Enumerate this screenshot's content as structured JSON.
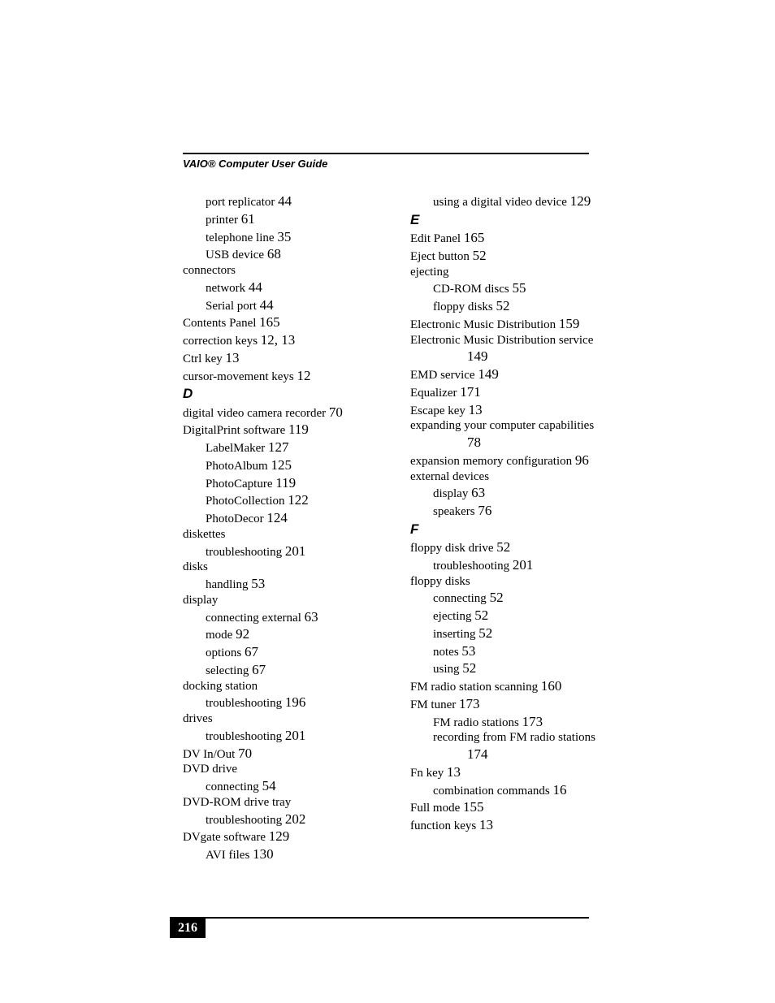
{
  "header": "VAIO® Computer User Guide",
  "page_number": "216",
  "colors": {
    "text": "#000000",
    "background": "#ffffff",
    "pagenum_bg": "#000000",
    "pagenum_fg": "#ffffff"
  },
  "fonts": {
    "body_family": "Times New Roman",
    "header_family": "Arial",
    "body_size_pt": 11,
    "page_ref_size_pt": 13,
    "header_size_pt": 10,
    "letter_size_pt": 13
  },
  "left_column": [
    {
      "type": "sub1",
      "text": "port replicator ",
      "page": "44"
    },
    {
      "type": "sub1",
      "text": "printer ",
      "page": "61"
    },
    {
      "type": "sub1",
      "text": "telephone line ",
      "page": "35"
    },
    {
      "type": "sub1",
      "text": "USB device ",
      "page": "68"
    },
    {
      "type": "entry",
      "text": "connectors",
      "page": ""
    },
    {
      "type": "sub1",
      "text": "network ",
      "page": "44"
    },
    {
      "type": "sub1",
      "text": "Serial port ",
      "page": "44"
    },
    {
      "type": "entry",
      "text": "Contents Panel ",
      "page": "165"
    },
    {
      "type": "entry",
      "text": "correction keys ",
      "page": "12, 13"
    },
    {
      "type": "entry",
      "text": "Ctrl key ",
      "page": "13"
    },
    {
      "type": "entry",
      "text": "cursor-movement keys ",
      "page": "12"
    },
    {
      "type": "letter",
      "text": "D",
      "page": ""
    },
    {
      "type": "entry",
      "text": "digital video camera recorder ",
      "page": "70"
    },
    {
      "type": "entry",
      "text": "DigitalPrint software ",
      "page": "119"
    },
    {
      "type": "sub1",
      "text": "LabelMaker ",
      "page": "127"
    },
    {
      "type": "sub1",
      "text": "PhotoAlbum ",
      "page": "125"
    },
    {
      "type": "sub1",
      "text": "PhotoCapture ",
      "page": "119"
    },
    {
      "type": "sub1",
      "text": "PhotoCollection ",
      "page": "122"
    },
    {
      "type": "sub1",
      "text": "PhotoDecor ",
      "page": "124"
    },
    {
      "type": "entry",
      "text": "diskettes",
      "page": ""
    },
    {
      "type": "sub1",
      "text": "troubleshooting ",
      "page": "201"
    },
    {
      "type": "entry",
      "text": "disks",
      "page": ""
    },
    {
      "type": "sub1",
      "text": "handling ",
      "page": "53"
    },
    {
      "type": "entry",
      "text": "display",
      "page": ""
    },
    {
      "type": "sub1",
      "text": "connecting external ",
      "page": "63"
    },
    {
      "type": "sub1",
      "text": "mode ",
      "page": "92"
    },
    {
      "type": "sub1",
      "text": "options ",
      "page": "67"
    },
    {
      "type": "sub1",
      "text": "selecting ",
      "page": "67"
    },
    {
      "type": "entry",
      "text": "docking station",
      "page": ""
    },
    {
      "type": "sub1",
      "text": "troubleshooting ",
      "page": "196"
    },
    {
      "type": "entry",
      "text": "drives",
      "page": ""
    },
    {
      "type": "sub1",
      "text": "troubleshooting ",
      "page": "201"
    },
    {
      "type": "entry",
      "text": "DV In/Out ",
      "page": "70"
    },
    {
      "type": "entry",
      "text": "DVD drive",
      "page": ""
    },
    {
      "type": "sub1",
      "text": "connecting ",
      "page": "54"
    },
    {
      "type": "entry",
      "text": "DVD-ROM drive tray",
      "page": ""
    },
    {
      "type": "sub1",
      "text": "troubleshooting ",
      "page": "202"
    },
    {
      "type": "entry",
      "text": "DVgate software ",
      "page": "129"
    },
    {
      "type": "sub1",
      "text": "AVI files ",
      "page": "130"
    }
  ],
  "right_column": [
    {
      "type": "sub1",
      "text": "using a digital video device ",
      "page": "129"
    },
    {
      "type": "letter",
      "text": "E",
      "page": ""
    },
    {
      "type": "entry",
      "text": "Edit Panel ",
      "page": "165"
    },
    {
      "type": "entry",
      "text": "Eject button ",
      "page": "52"
    },
    {
      "type": "entry",
      "text": "ejecting",
      "page": ""
    },
    {
      "type": "sub1",
      "text": "CD-ROM discs ",
      "page": "55"
    },
    {
      "type": "sub1",
      "text": "floppy disks ",
      "page": "52"
    },
    {
      "type": "entry",
      "text": "Electronic Music Distribution ",
      "page": "159"
    },
    {
      "type": "entry",
      "text": "Electronic Music Distribution service ",
      "page": ""
    },
    {
      "type": "sub2",
      "text": "",
      "page": "149"
    },
    {
      "type": "entry",
      "text": "EMD service ",
      "page": "149"
    },
    {
      "type": "entry",
      "text": "Equalizer ",
      "page": "171"
    },
    {
      "type": "entry",
      "text": "Escape key ",
      "page": "13"
    },
    {
      "type": "entry",
      "text": "expanding your computer capabilities ",
      "page": ""
    },
    {
      "type": "sub2",
      "text": "",
      "page": "78"
    },
    {
      "type": "entry",
      "text": "expansion memory configuration ",
      "page": "96"
    },
    {
      "type": "entry",
      "text": "external devices",
      "page": ""
    },
    {
      "type": "sub1",
      "text": "display ",
      "page": "63"
    },
    {
      "type": "sub1",
      "text": "speakers ",
      "page": "76"
    },
    {
      "type": "letter",
      "text": "F",
      "page": ""
    },
    {
      "type": "entry",
      "text": "floppy disk drive ",
      "page": "52"
    },
    {
      "type": "sub1",
      "text": "troubleshooting ",
      "page": "201"
    },
    {
      "type": "entry",
      "text": "floppy disks",
      "page": ""
    },
    {
      "type": "sub1",
      "text": "connecting ",
      "page": "52"
    },
    {
      "type": "sub1",
      "text": "ejecting ",
      "page": "52"
    },
    {
      "type": "sub1",
      "text": "inserting ",
      "page": "52"
    },
    {
      "type": "sub1",
      "text": "notes ",
      "page": "53"
    },
    {
      "type": "sub1",
      "text": "using ",
      "page": "52"
    },
    {
      "type": "entry",
      "text": "FM radio station scanning ",
      "page": "160"
    },
    {
      "type": "entry",
      "text": "FM tuner ",
      "page": "173"
    },
    {
      "type": "sub1",
      "text": "FM radio stations ",
      "page": "173"
    },
    {
      "type": "sub1",
      "text": "recording from FM radio stations ",
      "page": ""
    },
    {
      "type": "sub2",
      "text": "",
      "page": "174"
    },
    {
      "type": "entry",
      "text": "Fn key ",
      "page": "13"
    },
    {
      "type": "sub1",
      "text": "combination commands ",
      "page": "16"
    },
    {
      "type": "entry",
      "text": "Full mode ",
      "page": "155"
    },
    {
      "type": "entry",
      "text": "function keys ",
      "page": "13"
    }
  ]
}
